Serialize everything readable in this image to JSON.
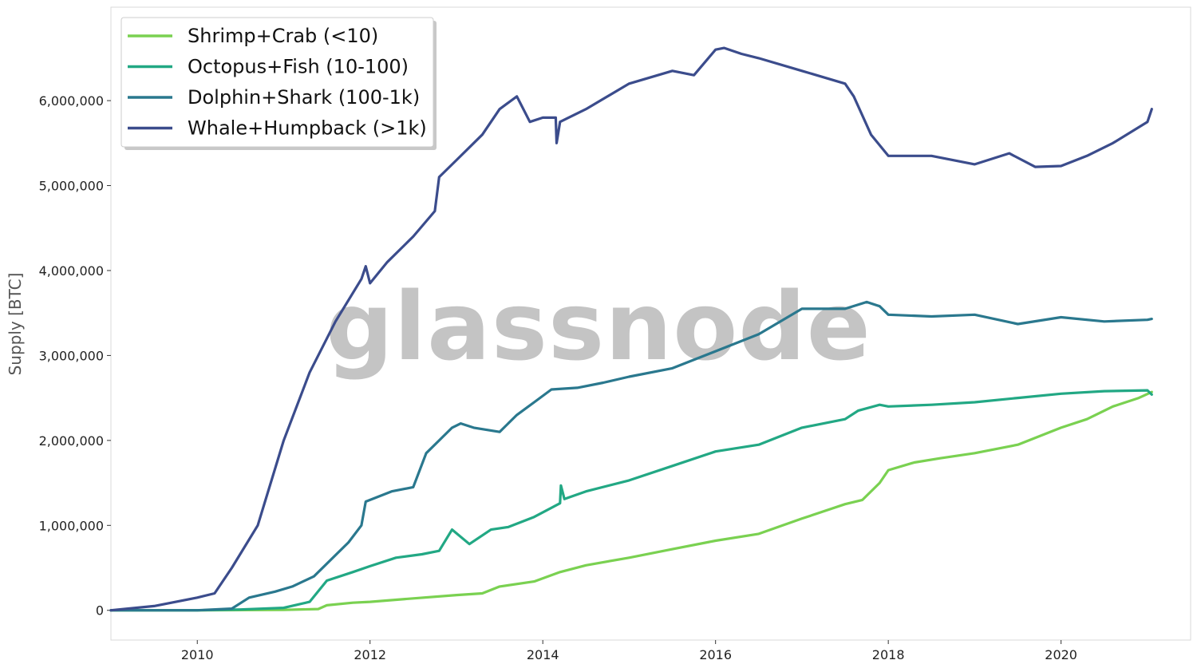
{
  "watermark": "glassnode",
  "chart_data": {
    "type": "line",
    "xlabel": "",
    "ylabel": "Supply [BTC]",
    "x_ticks": [
      "2010",
      "2012",
      "2014",
      "2016",
      "2018",
      "2020"
    ],
    "y_ticks": [
      "0",
      "1,000,000",
      "2,000,000",
      "3,000,000",
      "4,000,000",
      "5,000,000",
      "6,000,000"
    ],
    "xlim": [
      2009.0,
      2021.5
    ],
    "ylim": [
      -350000,
      7100000
    ],
    "grid": false,
    "legend_position": "top-left",
    "series": [
      {
        "name": "Shrimp+Crab (<10)",
        "color": "#7ad151",
        "x": [
          2009.0,
          2010.0,
          2011.0,
          2011.4,
          2011.5,
          2011.8,
          2012.0,
          2012.5,
          2013.0,
          2013.3,
          2013.5,
          2013.9,
          2014.2,
          2014.5,
          2015.0,
          2015.5,
          2016.0,
          2016.5,
          2017.0,
          2017.5,
          2017.7,
          2017.9,
          2018.0,
          2018.3,
          2018.6,
          2019.0,
          2019.5,
          2020.0,
          2020.3,
          2020.6,
          2020.9,
          2021.05
        ],
        "y": [
          0,
          0,
          5000,
          15000,
          60000,
          90000,
          100000,
          140000,
          180000,
          200000,
          280000,
          340000,
          450000,
          530000,
          620000,
          720000,
          820000,
          900000,
          1080000,
          1250000,
          1300000,
          1500000,
          1650000,
          1740000,
          1790000,
          1850000,
          1950000,
          2150000,
          2250000,
          2400000,
          2500000,
          2570000
        ]
      },
      {
        "name": "Octopus+Fish (10-100)",
        "color": "#22a884",
        "x": [
          2009.0,
          2010.0,
          2010.5,
          2011.0,
          2011.3,
          2011.5,
          2011.8,
          2012.0,
          2012.3,
          2012.6,
          2012.8,
          2012.95,
          2013.15,
          2013.4,
          2013.6,
          2013.9,
          2014.2,
          2014.21,
          2014.25,
          2014.5,
          2015.0,
          2015.5,
          2016.0,
          2016.5,
          2017.0,
          2017.5,
          2017.65,
          2017.9,
          2018.0,
          2018.5,
          2019.0,
          2019.5,
          2020.0,
          2020.5,
          2021.0,
          2021.05
        ],
        "y": [
          0,
          0,
          10000,
          30000,
          100000,
          350000,
          450000,
          520000,
          620000,
          660000,
          700000,
          950000,
          780000,
          950000,
          980000,
          1100000,
          1260000,
          1470000,
          1310000,
          1400000,
          1530000,
          1700000,
          1870000,
          1950000,
          2150000,
          2250000,
          2350000,
          2420000,
          2400000,
          2420000,
          2450000,
          2500000,
          2550000,
          2580000,
          2590000,
          2540000
        ]
      },
      {
        "name": "Dolphin+Shark (100-1k)",
        "color": "#2a788e",
        "x": [
          2009.0,
          2010.0,
          2010.4,
          2010.6,
          2010.9,
          2011.1,
          2011.35,
          2011.6,
          2011.75,
          2011.9,
          2011.95,
          2012.25,
          2012.5,
          2012.65,
          2012.8,
          2012.95,
          2013.05,
          2013.2,
          2013.5,
          2013.7,
          2013.9,
          2014.1,
          2014.4,
          2014.7,
          2015.0,
          2015.5,
          2016.0,
          2016.5,
          2017.0,
          2017.5,
          2017.75,
          2017.9,
          2018.0,
          2018.5,
          2019.0,
          2019.5,
          2020.0,
          2020.5,
          2021.0,
          2021.05
        ],
        "y": [
          0,
          0,
          20000,
          150000,
          220000,
          280000,
          400000,
          650000,
          800000,
          1000000,
          1280000,
          1400000,
          1450000,
          1850000,
          2000000,
          2150000,
          2200000,
          2150000,
          2100000,
          2300000,
          2450000,
          2600000,
          2620000,
          2680000,
          2750000,
          2850000,
          3050000,
          3250000,
          3550000,
          3550000,
          3630000,
          3580000,
          3480000,
          3460000,
          3480000,
          3370000,
          3450000,
          3400000,
          3420000,
          3430000
        ]
      },
      {
        "name": "Whale+Humpback (>1k)",
        "color": "#3b4c8c",
        "x": [
          2009.0,
          2009.5,
          2010.0,
          2010.2,
          2010.4,
          2010.7,
          2011.0,
          2011.3,
          2011.6,
          2011.9,
          2011.95,
          2012.0,
          2012.2,
          2012.5,
          2012.75,
          2012.8,
          2013.0,
          2013.3,
          2013.5,
          2013.7,
          2013.85,
          2014.0,
          2014.15,
          2014.16,
          2014.2,
          2014.5,
          2015.0,
          2015.5,
          2015.75,
          2016.0,
          2016.1,
          2016.3,
          2016.5,
          2017.0,
          2017.5,
          2017.6,
          2017.8,
          2018.0,
          2018.5,
          2019.0,
          2019.4,
          2019.7,
          2020.0,
          2020.3,
          2020.6,
          2021.0,
          2021.05
        ],
        "y": [
          0,
          50000,
          150000,
          200000,
          500000,
          1000000,
          2000000,
          2800000,
          3400000,
          3900000,
          4050000,
          3850000,
          4100000,
          4400000,
          4700000,
          5100000,
          5300000,
          5600000,
          5900000,
          6050000,
          5750000,
          5800000,
          5800000,
          5500000,
          5750000,
          5900000,
          6200000,
          6350000,
          6300000,
          6600000,
          6620000,
          6550000,
          6500000,
          6350000,
          6200000,
          6050000,
          5600000,
          5350000,
          5350000,
          5250000,
          5380000,
          5220000,
          5230000,
          5350000,
          5500000,
          5750000,
          5900000
        ]
      }
    ]
  }
}
